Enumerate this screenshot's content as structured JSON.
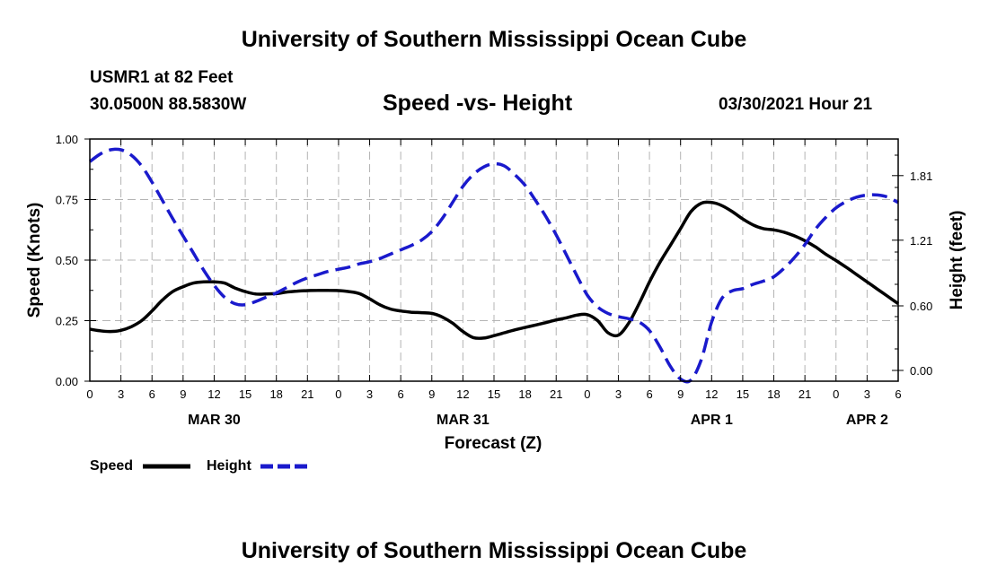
{
  "header": {
    "title": "University of Southern Mississippi Ocean Cube",
    "station": "USMR1 at 82 Feet",
    "coords": "30.0500N  88.5830W",
    "chart_title": "Speed -vs- Height",
    "timestamp": "03/30/2021 Hour 21"
  },
  "footer": {
    "title": "University of Southern Mississippi Ocean Cube"
  },
  "colors": {
    "speed": "#000000",
    "height": "#1a1acc",
    "grid": "#b4b4b4"
  },
  "chart_data": {
    "type": "line",
    "title": "Speed -vs- Height",
    "xlabel": "Forecast (Z)",
    "ylabel": "Speed (Knots)",
    "y2label": "Height (feet)",
    "xlim": [
      0,
      78
    ],
    "ylim": [
      0,
      1.0
    ],
    "y2lim": [
      -0.1,
      2.15
    ],
    "x_tick_values": [
      0,
      3,
      6,
      9,
      12,
      15,
      18,
      21,
      24,
      27,
      30,
      33,
      36,
      39,
      42,
      45,
      48,
      51,
      54,
      57,
      60,
      63,
      66,
      69,
      72,
      75,
      78
    ],
    "x_tick_labels": [
      "0",
      "3",
      "6",
      "9",
      "12",
      "15",
      "18",
      "21",
      "0",
      "3",
      "6",
      "9",
      "12",
      "15",
      "18",
      "21",
      "0",
      "3",
      "6",
      "9",
      "12",
      "15",
      "18",
      "21",
      "0",
      "3",
      "6"
    ],
    "date_labels": [
      {
        "label": "MAR 30",
        "x": 12
      },
      {
        "label": "MAR 31",
        "x": 36
      },
      {
        "label": "APR 1",
        "x": 60
      },
      {
        "label": "APR 2",
        "x": 75
      }
    ],
    "y_ticks": [
      {
        "value": 0.0,
        "label": "0.00"
      },
      {
        "value": 0.25,
        "label": "0.25"
      },
      {
        "value": 0.5,
        "label": "0.50"
      },
      {
        "value": 0.75,
        "label": "0.75"
      },
      {
        "value": 1.0,
        "label": "1.00"
      }
    ],
    "y2_ticks": [
      {
        "value": 0.0,
        "label": "0.00"
      },
      {
        "value": 0.6,
        "label": "0.60"
      },
      {
        "value": 1.21,
        "label": "1.21"
      },
      {
        "value": 1.81,
        "label": "1.81"
      }
    ],
    "grid": true,
    "series": [
      {
        "name": "Speed",
        "axis": "left",
        "style": "solid",
        "x": [
          0,
          1,
          2,
          3,
          4,
          5,
          6,
          7,
          8,
          9,
          10,
          11,
          12,
          13,
          14,
          15,
          16,
          17,
          18,
          19,
          20,
          21,
          22,
          23,
          24,
          25,
          26,
          27,
          28,
          29,
          30,
          31,
          32,
          33,
          34,
          35,
          36,
          37,
          38,
          39,
          40,
          41,
          42,
          43,
          44,
          45,
          46,
          47,
          48,
          49,
          50,
          51,
          52,
          53,
          54,
          55,
          56,
          57,
          58,
          59,
          60,
          61,
          62,
          63,
          64,
          65,
          66,
          67,
          68,
          69,
          70,
          71,
          72,
          73,
          74,
          75,
          76,
          77,
          78
        ],
        "values": [
          0.215,
          0.208,
          0.205,
          0.21,
          0.225,
          0.25,
          0.29,
          0.335,
          0.37,
          0.39,
          0.405,
          0.41,
          0.41,
          0.405,
          0.385,
          0.37,
          0.36,
          0.36,
          0.362,
          0.368,
          0.372,
          0.374,
          0.375,
          0.375,
          0.374,
          0.37,
          0.362,
          0.34,
          0.315,
          0.298,
          0.29,
          0.285,
          0.283,
          0.28,
          0.265,
          0.24,
          0.205,
          0.18,
          0.178,
          0.188,
          0.2,
          0.212,
          0.222,
          0.232,
          0.242,
          0.253,
          0.262,
          0.273,
          0.275,
          0.25,
          0.2,
          0.19,
          0.24,
          0.32,
          0.41,
          0.49,
          0.56,
          0.63,
          0.7,
          0.735,
          0.738,
          0.725,
          0.7,
          0.67,
          0.645,
          0.63,
          0.625,
          0.615,
          0.6,
          0.58,
          0.555,
          0.525,
          0.498,
          0.47,
          0.44,
          0.41,
          0.38,
          0.35,
          0.32
        ]
      },
      {
        "name": "Height",
        "axis": "right",
        "style": "dashed",
        "x": [
          0,
          1,
          2,
          3,
          4,
          5,
          6,
          7,
          8,
          9,
          10,
          11,
          12,
          13,
          14,
          15,
          16,
          17,
          18,
          19,
          20,
          21,
          22,
          23,
          24,
          25,
          26,
          27,
          28,
          29,
          30,
          31,
          32,
          33,
          34,
          35,
          36,
          37,
          38,
          39,
          40,
          41,
          42,
          43,
          44,
          45,
          46,
          47,
          48,
          49,
          50,
          51,
          52,
          53,
          54,
          55,
          56,
          57,
          58,
          59,
          60,
          61,
          62,
          63,
          64,
          65,
          66,
          67,
          68,
          69,
          70,
          71,
          72,
          73,
          74,
          75,
          76,
          77,
          78
        ],
        "values": [
          1.94,
          2.01,
          2.05,
          2.05,
          2.0,
          1.9,
          1.75,
          1.58,
          1.41,
          1.25,
          1.09,
          0.93,
          0.79,
          0.68,
          0.62,
          0.61,
          0.64,
          0.68,
          0.72,
          0.77,
          0.82,
          0.86,
          0.89,
          0.92,
          0.94,
          0.96,
          0.99,
          1.01,
          1.04,
          1.08,
          1.12,
          1.16,
          1.21,
          1.29,
          1.41,
          1.56,
          1.71,
          1.82,
          1.89,
          1.92,
          1.9,
          1.82,
          1.72,
          1.58,
          1.43,
          1.26,
          1.07,
          0.88,
          0.7,
          0.59,
          0.53,
          0.5,
          0.48,
          0.45,
          0.37,
          0.22,
          0.04,
          -0.08,
          -0.09,
          0.1,
          0.45,
          0.67,
          0.74,
          0.76,
          0.8,
          0.83,
          0.87,
          0.95,
          1.05,
          1.17,
          1.31,
          1.42,
          1.51,
          1.57,
          1.61,
          1.63,
          1.63,
          1.61,
          1.56
        ]
      }
    ]
  },
  "legend": {
    "speed_label": "Speed",
    "height_label": "Height"
  }
}
